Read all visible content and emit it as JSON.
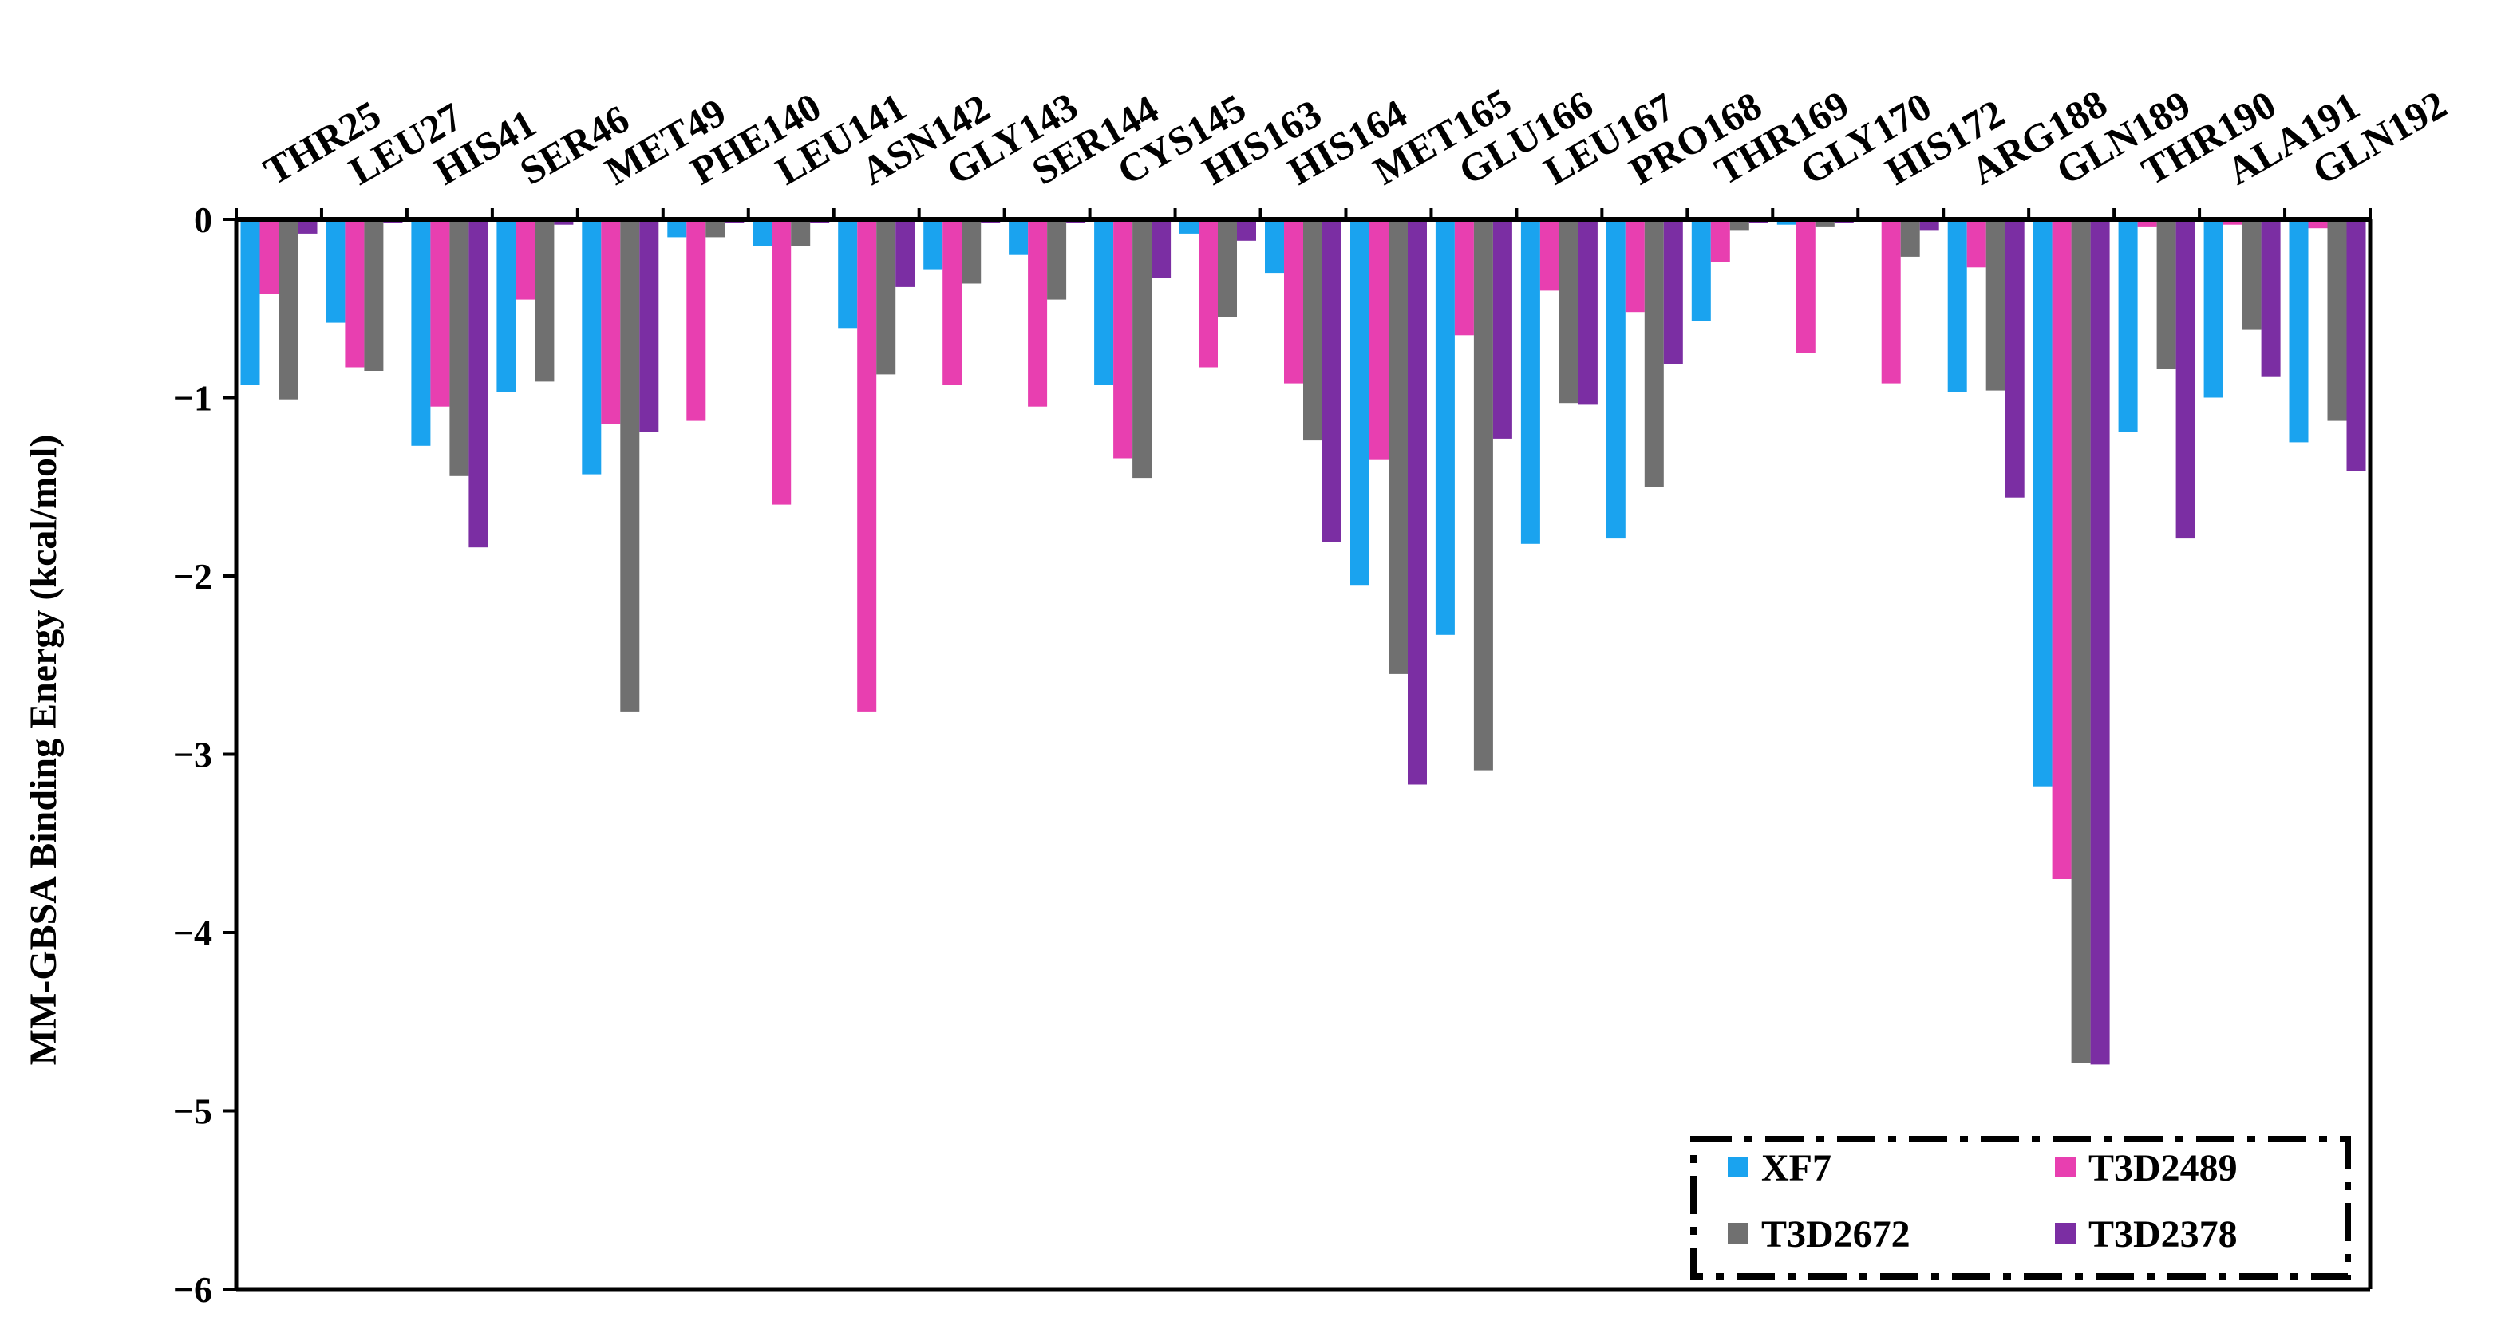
{
  "chart_data": {
    "type": "bar",
    "ylabel": "MM-GBSA Binding Energy (kcal/mol)",
    "xlabel": "",
    "ylim": [
      -6,
      0
    ],
    "yticks": [
      "0",
      "−1",
      "−2",
      "−3",
      "−4",
      "−5",
      "−6"
    ],
    "ytick_values": [
      0,
      -1,
      -2,
      -3,
      -4,
      -5,
      -6
    ],
    "grid": false,
    "legend_position": "bottom-right",
    "categories": [
      "THR25",
      "LEU27",
      "HIS41",
      "SER46",
      "MET49",
      "PHE140",
      "LEU141",
      "ASN142",
      "GLY143",
      "SER144",
      "CYS145",
      "HIS163",
      "HIS164",
      "MET165",
      "GLU166",
      "LEU167",
      "PRO168",
      "THR169",
      "GLY170",
      "HIS172",
      "ARG188",
      "GLN189",
      "THR190",
      "ALA191",
      "GLN192"
    ],
    "series": [
      {
        "name": "XF7",
        "color": "#1aa3ef",
        "values": [
          -0.93,
          -0.58,
          -1.27,
          -0.97,
          -1.43,
          -0.1,
          -0.15,
          -0.61,
          -0.28,
          -0.2,
          -0.93,
          -0.08,
          -0.3,
          -2.05,
          -2.33,
          -1.82,
          -1.79,
          -0.57,
          -0.03,
          0.0,
          -0.97,
          -3.18,
          -1.19,
          -1.0,
          -1.25
        ]
      },
      {
        "name": "T3D2489",
        "color": "#e83fb0",
        "values": [
          -0.42,
          -0.83,
          -1.05,
          -0.45,
          -1.15,
          -1.13,
          -1.6,
          -2.76,
          -0.93,
          -1.05,
          -1.34,
          -0.83,
          -0.92,
          -1.35,
          -0.65,
          -0.4,
          -0.52,
          -0.24,
          -0.75,
          -0.92,
          -0.27,
          -3.7,
          -0.04,
          -0.03,
          -0.05
        ]
      },
      {
        "name": "T3D2672",
        "color": "#707070",
        "values": [
          -1.01,
          -0.85,
          -1.44,
          -0.91,
          -2.76,
          -0.1,
          -0.15,
          -0.87,
          -0.36,
          -0.45,
          -1.45,
          -0.55,
          -1.24,
          -2.55,
          -3.09,
          -1.03,
          -1.5,
          -0.06,
          -0.04,
          -0.21,
          -0.96,
          -4.73,
          -0.84,
          -0.62,
          -1.13
        ]
      },
      {
        "name": "T3D2378",
        "color": "#7b2ea3",
        "values": [
          -0.08,
          -0.02,
          -1.84,
          -0.03,
          -1.19,
          -0.02,
          -0.02,
          -0.38,
          -0.02,
          -0.02,
          -0.33,
          -0.12,
          -1.81,
          -3.17,
          -1.23,
          -1.04,
          -0.81,
          -0.02,
          -0.02,
          -0.06,
          -1.56,
          -4.74,
          -1.79,
          -0.88,
          -1.41
        ]
      }
    ]
  }
}
